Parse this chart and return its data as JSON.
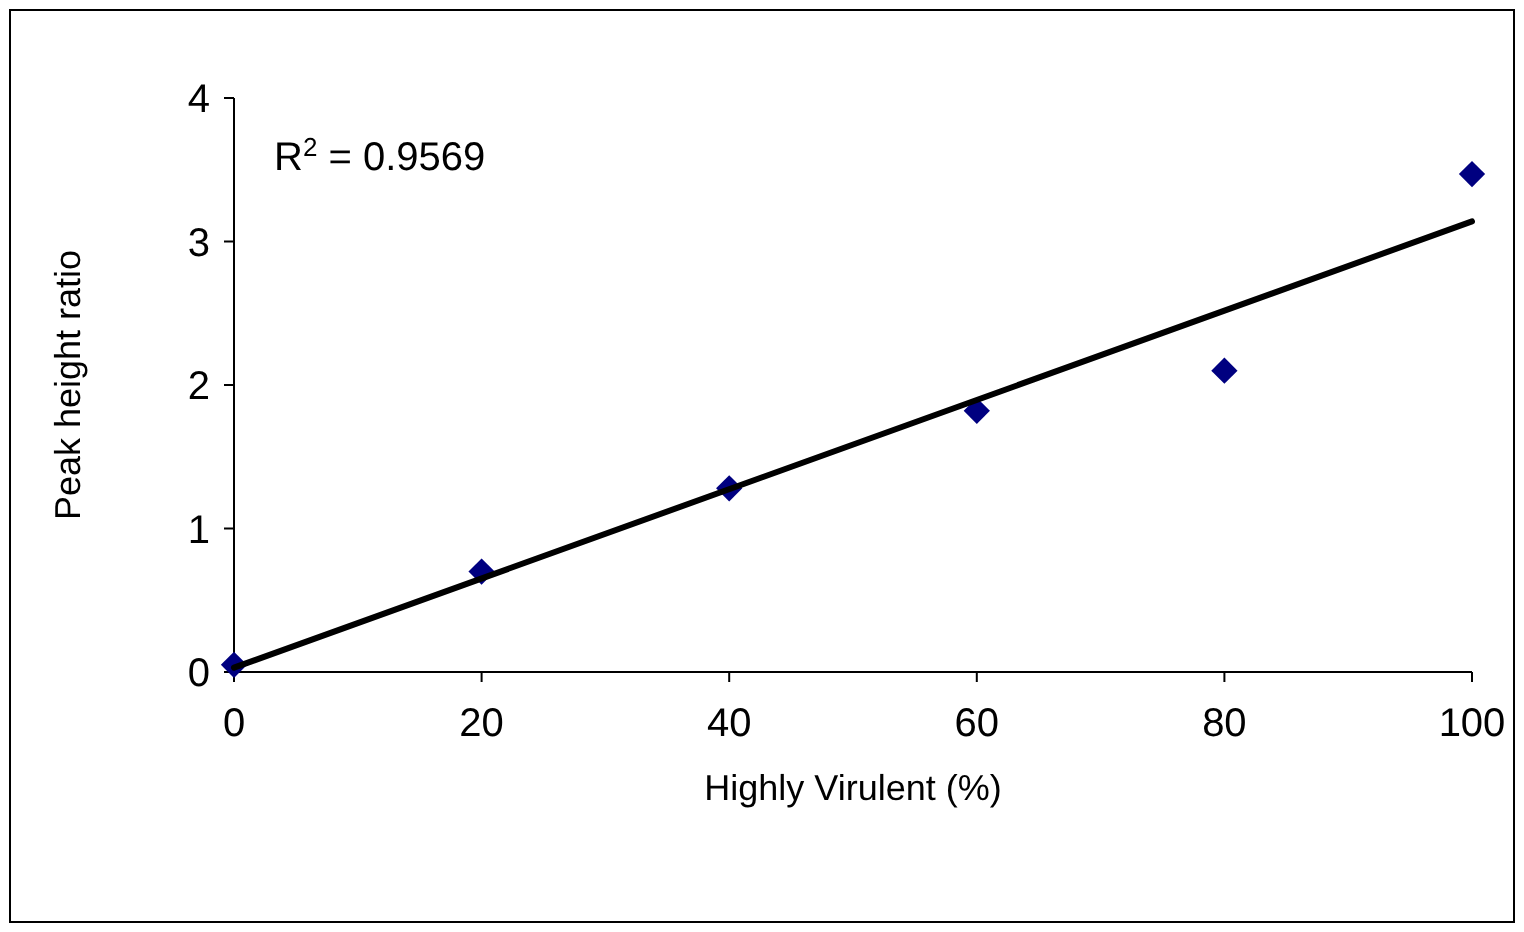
{
  "chart_data": {
    "type": "scatter",
    "xlabel": "Highly Virulent (%)",
    "ylabel": "Peak height ratio",
    "annotations": [
      "R$^{2}$ = 0.9569"
    ],
    "xlim": [
      0,
      100
    ],
    "xticks": [
      0,
      20,
      40,
      60,
      80,
      100
    ],
    "ylim": [
      0,
      4
    ],
    "yticks": [
      0,
      1,
      2,
      3,
      4
    ],
    "grid": false,
    "series": [
      {
        "color": "#000080",
        "marker": "diamond",
        "x": [
          0,
          20,
          40,
          60,
          80,
          100
        ],
        "values": [
          0.05,
          0.7,
          1.28,
          1.82,
          2.1,
          3.47
        ]
      },
      {
        "type": "line",
        "color": "#000000",
        "marker": "none",
        "line_style": "solid",
        "x": [
          0,
          100
        ],
        "values": [
          0.03,
          3.14
        ]
      }
    ]
  }
}
